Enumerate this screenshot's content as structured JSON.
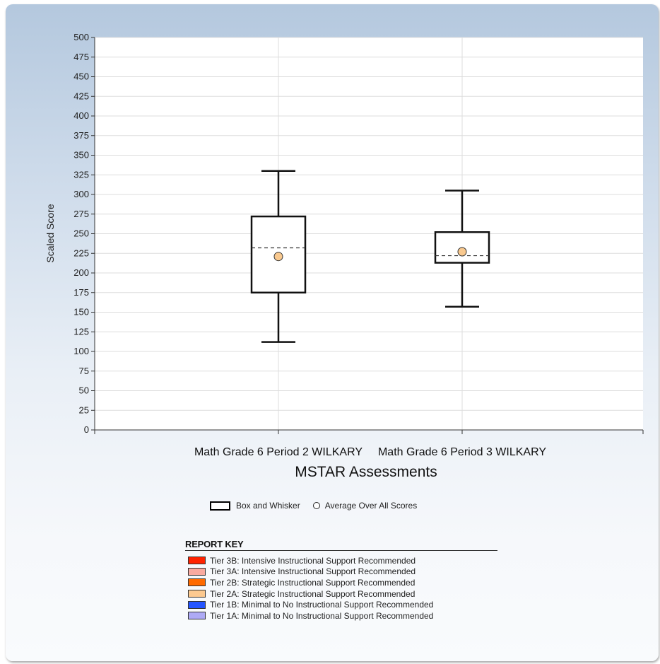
{
  "chart_data": {
    "type": "boxplot",
    "title": "",
    "xlabel": "MSTAR Assessments",
    "ylabel": "Scaled Score",
    "ylim": [
      0,
      500
    ],
    "ytick_step": 25,
    "grid": true,
    "categories": [
      "Math Grade 6  Period 2 WILKARY",
      "Math Grade 6 Period 3 WILKARY"
    ],
    "boxes": [
      {
        "category": "Math Grade 6  Period 2 WILKARY",
        "min": 112,
        "q1": 175,
        "median": 232,
        "q3": 272,
        "max": 330,
        "mean": 221
      },
      {
        "category": "Math Grade 6 Period 3 WILKARY",
        "min": 157,
        "q1": 213,
        "median": 222,
        "q3": 252,
        "max": 305,
        "mean": 227
      }
    ],
    "legend": {
      "placement": "bottom",
      "entries": [
        {
          "label": "Box and Whisker",
          "marker": "box"
        },
        {
          "label": "Average Over All Scores",
          "marker": "circle"
        }
      ]
    },
    "mean_marker_color": "#f9c98f",
    "box_color": "#000000"
  },
  "report_key": {
    "title": "REPORT KEY",
    "items": [
      {
        "label": "Tier 3B: Intensive Instructional Support Recommended",
        "color": "#ff2200"
      },
      {
        "label": "Tier 3A: Intensive Instructional Support Recommended",
        "color": "#f9aaa0"
      },
      {
        "label": "Tier 2B: Strategic Instructional Support Recommended",
        "color": "#ff6a00"
      },
      {
        "label": "Tier 2A: Strategic Instructional Support Recommended",
        "color": "#fcc990"
      },
      {
        "label": "Tier 1B: Minimal to No Instructional Support Recommended",
        "color": "#2555ff"
      },
      {
        "label": "Tier 1A: Minimal to No Instructional Support Recommended",
        "color": "#aeaaf5"
      }
    ]
  }
}
